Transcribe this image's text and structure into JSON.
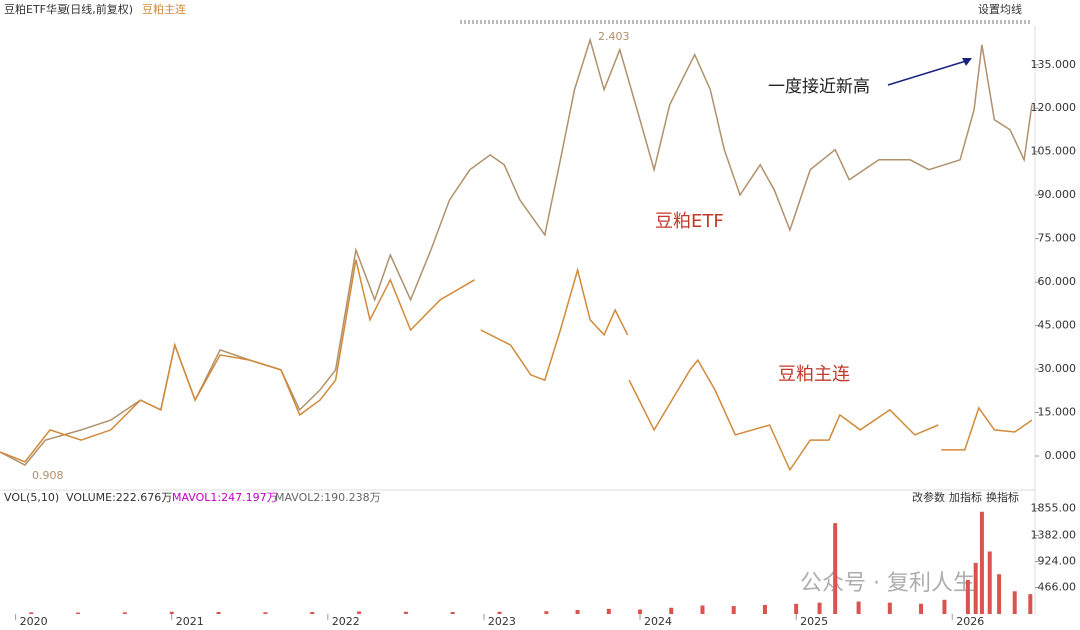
{
  "header": {
    "title": "豆粕ETF华夏",
    "period": "(日线,前复权)",
    "compare": "豆粕主连",
    "settings": "设置均线"
  },
  "annotation": "一度接近新高",
  "price_marks": {
    "low": "0.908",
    "high": "2.403"
  },
  "indicator": {
    "name": "VOL(5,10)",
    "volume": "VOLUME:222.676万",
    "mavol1": "MAVOL1:247.197万",
    "mavol2": "MAVOL2:190.238万"
  },
  "buttons": [
    "改参数",
    "加指标",
    "换指标"
  ],
  "watermark": "公众号 · 复利人生",
  "chart_data": [
    {
      "type": "line",
      "xlim": [
        2019.9,
        2026.53
      ],
      "xticks": [
        2020,
        2021,
        2022,
        2023,
        2024,
        2025,
        2026
      ],
      "ylim": [
        -10,
        147
      ],
      "yticks": [
        {
          "value": 0,
          "label": "0.000"
        },
        {
          "value": 15,
          "label": "15.000"
        },
        {
          "value": 30,
          "label": "30.000"
        },
        {
          "value": 45,
          "label": "45.000"
        },
        {
          "value": 60,
          "label": "60.000"
        },
        {
          "value": 75,
          "label": "75.000"
        },
        {
          "value": 90,
          "label": "90.000"
        },
        {
          "value": 105,
          "label": "105.000"
        },
        {
          "value": 120,
          "label": "120.000"
        },
        {
          "value": 135,
          "label": "135.000"
        }
      ],
      "series": [
        {
          "name": "豆粕ETF",
          "color": "#b0916c",
          "x": [
            2019.9,
            2020.06,
            2020.19,
            2020.42,
            2020.61,
            2020.8,
            2020.93,
            2021.02,
            2021.15,
            2021.31,
            2021.5,
            2021.7,
            2021.82,
            2021.95,
            2022.05,
            2022.18,
            2022.3,
            2022.4,
            2022.53,
            2022.66,
            2022.78,
            2022.91,
            2023.04,
            2023.13,
            2023.23,
            2023.39,
            2023.49,
            2023.58,
            2023.68,
            2023.77,
            2023.87,
            2024.0,
            2024.09,
            2024.19,
            2024.35,
            2024.45,
            2024.54,
            2024.64,
            2024.77,
            2024.86,
            2024.96,
            2025.09,
            2025.25,
            2025.34,
            2025.53,
            2025.73,
            2025.85,
            2026.05,
            2026.14,
            2026.19,
            2026.27,
            2026.37,
            2026.46,
            2026.51
          ],
          "values": [
            1.4,
            -3.1,
            5.5,
            9,
            12.4,
            19.3,
            15.9,
            38.3,
            19.3,
            36.6,
            33.1,
            29.7,
            15.9,
            22.8,
            29.7,
            71.1,
            53.9,
            69.4,
            53.9,
            71.1,
            88.4,
            98.8,
            103.9,
            100.5,
            88.4,
            76.3,
            102.2,
            126.4,
            143.6,
            126.4,
            140.2,
            116,
            98.8,
            121.2,
            138.5,
            126.4,
            105.7,
            90.1,
            100.5,
            91.8,
            78,
            98.8,
            105.7,
            95.3,
            102.2,
            102.2,
            98.8,
            102.2,
            119.5,
            141.9,
            116,
            112.6,
            102.2,
            121.2
          ]
        },
        {
          "name": "豆粕主连",
          "color": "#d08a3a",
          "x": [
            2019.9,
            2020.06,
            2020.22,
            2020.42,
            2020.61,
            2020.8,
            2020.93,
            2021.02,
            2021.15,
            2021.31,
            2021.5,
            2021.7,
            2021.82,
            2021.95,
            2022.05,
            2022.18,
            2022.27,
            2022.4,
            2022.53,
            2022.72,
            2022.94,
            2022.96,
            2022.98,
            2023.17,
            2023.3,
            2023.39,
            2023.49,
            2023.6,
            2023.68,
            2023.77,
            2023.84,
            2023.92,
            2023.925,
            2023.93,
            2024.09,
            2024.32,
            2024.37,
            2024.48,
            2024.61,
            2024.83,
            2024.96,
            2025.09,
            2025.21,
            2025.28,
            2025.41,
            2025.6,
            2025.76,
            2025.91,
            2025.92,
            2025.93,
            2026.08,
            2026.17,
            2026.27,
            2026.4,
            2026.51
          ],
          "values": [
            1.4,
            -2,
            9,
            5.5,
            9,
            19.3,
            15.9,
            38.3,
            19.3,
            34.9,
            33.1,
            29.7,
            14.2,
            19.3,
            26.2,
            67.7,
            47,
            60.8,
            43.5,
            53.9,
            60.8,
            null,
            43.5,
            38.3,
            28,
            26.2,
            43.5,
            64.2,
            47,
            41.8,
            50.4,
            41.8,
            null,
            26.2,
            9,
            29.7,
            33.1,
            22.8,
            7.3,
            10.7,
            -4.8,
            5.5,
            5.5,
            14.2,
            9,
            15.9,
            7.3,
            10.7,
            null,
            2.1,
            2.1,
            16.6,
            9,
            8.3,
            12.4
          ]
        }
      ]
    },
    {
      "type": "bar",
      "xlim": [
        2019.9,
        2026.53
      ],
      "ylim": [
        0,
        2060
      ],
      "yticks": [
        {
          "value": 466,
          "label": "466.00"
        },
        {
          "value": 924,
          "label": "924.00"
        },
        {
          "value": 1382,
          "label": "1382.00"
        },
        {
          "value": 1855,
          "label": "1855.00"
        }
      ],
      "color": "#d9534f",
      "x": [
        2020.1,
        2020.4,
        2020.7,
        2021.0,
        2021.3,
        2021.6,
        2021.9,
        2022.2,
        2022.5,
        2022.8,
        2023.1,
        2023.4,
        2023.6,
        2023.8,
        2024.0,
        2024.2,
        2024.4,
        2024.6,
        2024.8,
        2025.0,
        2025.15,
        2025.25,
        2025.4,
        2025.6,
        2025.8,
        2025.95,
        2026.1,
        2026.15,
        2026.19,
        2026.24,
        2026.3,
        2026.4,
        2026.5
      ],
      "values": [
        30,
        25,
        30,
        40,
        35,
        30,
        35,
        45,
        40,
        35,
        40,
        50,
        70,
        90,
        80,
        110,
        150,
        140,
        160,
        180,
        200,
        1600,
        220,
        200,
        180,
        250,
        600,
        900,
        1800,
        1100,
        700,
        400,
        350
      ]
    }
  ]
}
